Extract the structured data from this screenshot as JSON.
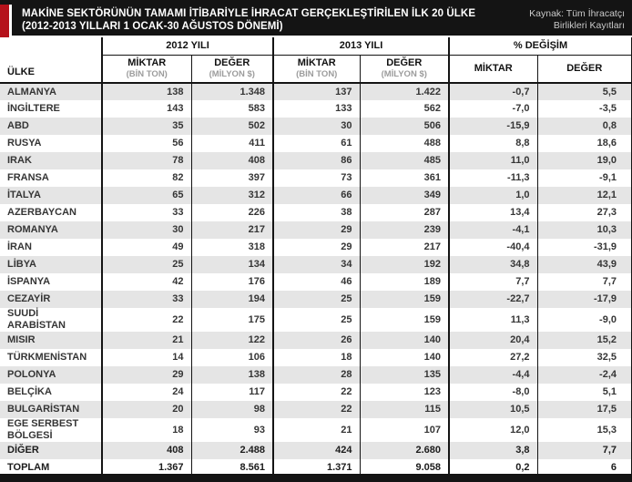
{
  "colors": {
    "accent_red": "#b5121b",
    "bar_black": "#141414",
    "stripe_gray": "#e5e5e5"
  },
  "header": {
    "title_line1": "MAKİNE SEKTÖRÜNÜN TAMAMI İTİBARİYLE İHRACAT GERÇEKLEŞTİRİLEN İLK 20 ÜLKE",
    "title_line2": "(2012-2013 YILLARI 1 OCAK-30 AĞUSTOS DÖNEMİ)",
    "source": "Kaynak: Tüm İhracatçı Birlikleri Kayıtları"
  },
  "chart_data": {
    "type": "table",
    "title": "MAKİNE SEKTÖRÜNÜN TAMAMI İTİBARİYLE İHRACAT GERÇEKLEŞTİRİLEN İLK 20 ÜLKE (2012-2013 YILLARI 1 OCAK-30 AĞUSTOS DÖNEMİ)",
    "source": "Kaynak: Tüm İhracatçı Birlikleri Kayıtları",
    "country_header": "ÜLKE",
    "column_groups": [
      {
        "label": "2012 YILI",
        "columns": [
          {
            "title": "MİKTAR",
            "subtitle": "(BİN TON)"
          },
          {
            "title": "DEĞER",
            "subtitle": "(MİLYON $)"
          }
        ]
      },
      {
        "label": "2013 YILI",
        "columns": [
          {
            "title": "MİKTAR",
            "subtitle": "(BİN TON)"
          },
          {
            "title": "DEĞER",
            "subtitle": "(MİLYON $)"
          }
        ]
      },
      {
        "label": "% DEĞİŞİM",
        "columns": [
          {
            "title": "MİKTAR",
            "subtitle": ""
          },
          {
            "title": "DEĞER",
            "subtitle": ""
          }
        ]
      }
    ],
    "rows": [
      {
        "country": "ALMANYA",
        "values": [
          "138",
          "1.348",
          "137",
          "1.422",
          "-0,7",
          "5,5"
        ]
      },
      {
        "country": "İNGİLTERE",
        "values": [
          "143",
          "583",
          "133",
          "562",
          "-7,0",
          "-3,5"
        ]
      },
      {
        "country": "ABD",
        "values": [
          "35",
          "502",
          "30",
          "506",
          "-15,9",
          "0,8"
        ]
      },
      {
        "country": "RUSYA",
        "values": [
          "56",
          "411",
          "61",
          "488",
          "8,8",
          "18,6"
        ]
      },
      {
        "country": "IRAK",
        "values": [
          "78",
          "408",
          "86",
          "485",
          "11,0",
          "19,0"
        ]
      },
      {
        "country": "FRANSA",
        "values": [
          "82",
          "397",
          "73",
          "361",
          "-11,3",
          "-9,1"
        ]
      },
      {
        "country": "İTALYA",
        "values": [
          "65",
          "312",
          "66",
          "349",
          "1,0",
          "12,1"
        ]
      },
      {
        "country": "AZERBAYCAN",
        "values": [
          "33",
          "226",
          "38",
          "287",
          "13,4",
          "27,3"
        ]
      },
      {
        "country": "ROMANYA",
        "values": [
          "30",
          "217",
          "29",
          "239",
          "-4,1",
          "10,3"
        ]
      },
      {
        "country": "İRAN",
        "values": [
          "49",
          "318",
          "29",
          "217",
          "-40,4",
          "-31,9"
        ]
      },
      {
        "country": "LİBYA",
        "values": [
          "25",
          "134",
          "34",
          "192",
          "34,8",
          "43,9"
        ]
      },
      {
        "country": "İSPANYA",
        "values": [
          "42",
          "176",
          "46",
          "189",
          "7,7",
          "7,7"
        ]
      },
      {
        "country": "CEZAYİR",
        "values": [
          "33",
          "194",
          "25",
          "159",
          "-22,7",
          "-17,9"
        ]
      },
      {
        "country": "SUUDİ ARABİSTAN",
        "values": [
          "22",
          "175",
          "25",
          "159",
          "11,3",
          "-9,0"
        ]
      },
      {
        "country": "MISIR",
        "values": [
          "21",
          "122",
          "26",
          "140",
          "20,4",
          "15,2"
        ]
      },
      {
        "country": "TÜRKMENİSTAN",
        "values": [
          "14",
          "106",
          "18",
          "140",
          "27,2",
          "32,5"
        ]
      },
      {
        "country": "POLONYA",
        "values": [
          "29",
          "138",
          "28",
          "135",
          "-4,4",
          "-2,4"
        ]
      },
      {
        "country": "BELÇİKA",
        "values": [
          "24",
          "117",
          "22",
          "123",
          "-8,0",
          "5,1"
        ]
      },
      {
        "country": "BULGARİSTAN",
        "values": [
          "20",
          "98",
          "22",
          "115",
          "10,5",
          "17,5"
        ]
      },
      {
        "country": "EGE SERBEST BÖLGESİ",
        "values": [
          "18",
          "93",
          "21",
          "107",
          "12,0",
          "15,3"
        ]
      },
      {
        "country": "DİĞER",
        "values": [
          "408",
          "2.488",
          "424",
          "2.680",
          "3,8",
          "7,7"
        ]
      },
      {
        "country": "TOPLAM",
        "values": [
          "1.367",
          "8.561",
          "1.371",
          "9.058",
          "0,2",
          "6"
        ]
      }
    ],
    "summary_rows": [
      "DİĞER",
      "TOPLAM"
    ]
  }
}
